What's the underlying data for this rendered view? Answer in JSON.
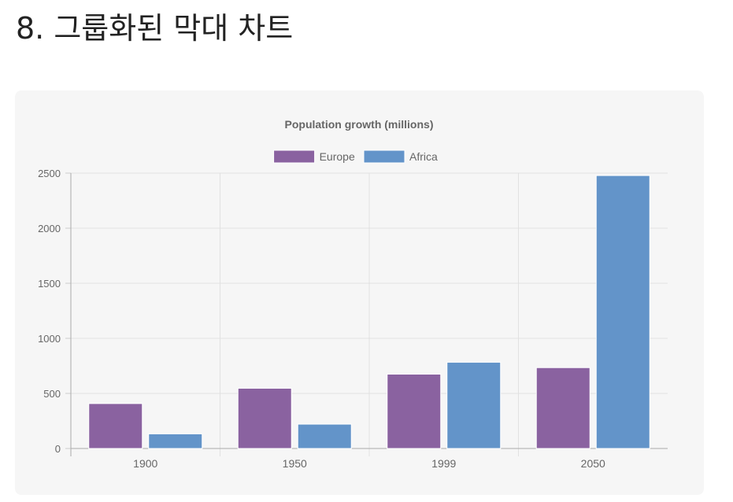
{
  "page": {
    "title": "8. 그룹화된 막대 차트"
  },
  "chart_data": {
    "type": "bar",
    "title": "Population growth (millions)",
    "categories": [
      "1900",
      "1950",
      "1999",
      "2050"
    ],
    "series": [
      {
        "name": "Europe",
        "values": [
          408,
          547,
          675,
          734
        ],
        "color": "#8a62a0"
      },
      {
        "name": "Africa",
        "values": [
          133,
          221,
          783,
          2478
        ],
        "color": "#6394c9"
      }
    ],
    "yticks": [
      0,
      500,
      1000,
      1500,
      2000,
      2500
    ],
    "ylim": [
      0,
      2500
    ],
    "xlabel": "",
    "ylabel": "",
    "legend_position": "top",
    "grid": true
  }
}
